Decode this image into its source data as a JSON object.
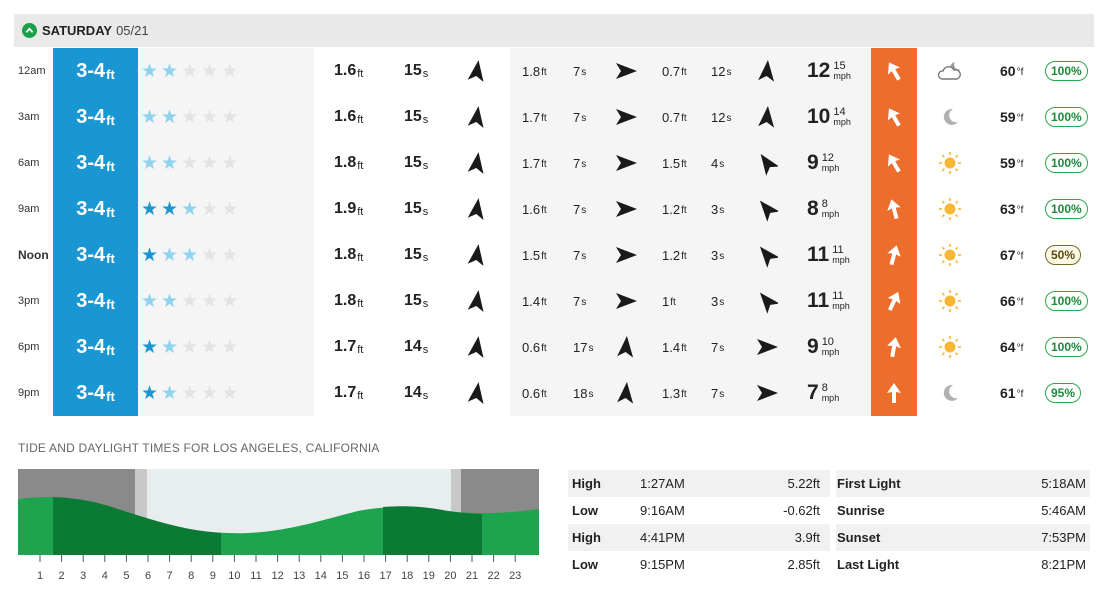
{
  "day": {
    "name": "SATURDAY",
    "date": "05/21"
  },
  "rows": [
    {
      "time": "12am",
      "bold": false,
      "wave": "3-4",
      "wave_unit": "ft",
      "stars": [
        "l",
        "l",
        "e",
        "e",
        "e"
      ],
      "s1h": "1.6",
      "s1p": "15",
      "s2h": "1.8",
      "s2p": "7",
      "s3h": "0.7",
      "s3p": "12",
      "wind": "12",
      "gust": "15",
      "wind_unit": "mph",
      "wx": "cloud-moon",
      "temp": "60",
      "temp_unit": "°f",
      "cloud": "100%",
      "cmid": false,
      "a1": 8,
      "a2": 90,
      "a3": 5,
      "aw": 10,
      "awd": -30
    },
    {
      "time": "3am",
      "bold": false,
      "wave": "3-4",
      "wave_unit": "ft",
      "stars": [
        "l",
        "l",
        "e",
        "e",
        "e"
      ],
      "s1h": "1.6",
      "s1p": "15",
      "s2h": "1.7",
      "s2p": "7",
      "s3h": "0.7",
      "s3p": "12",
      "wind": "10",
      "gust": "14",
      "wind_unit": "mph",
      "wx": "moon",
      "temp": "59",
      "temp_unit": "°f",
      "cloud": "100%",
      "cmid": false,
      "a1": 8,
      "a2": 90,
      "a3": 5,
      "aw": 10,
      "awd": -30
    },
    {
      "time": "6am",
      "bold": false,
      "wave": "3-4",
      "wave_unit": "ft",
      "stars": [
        "l",
        "l",
        "e",
        "e",
        "e"
      ],
      "s1h": "1.8",
      "s1p": "15",
      "s2h": "1.7",
      "s2p": "7",
      "s3h": "1.5",
      "s3p": "4",
      "wind": "9",
      "gust": "12",
      "wind_unit": "mph",
      "wx": "sun",
      "temp": "59",
      "temp_unit": "°f",
      "cloud": "100%",
      "cmid": false,
      "a1": 8,
      "a2": 90,
      "a3": -35,
      "aw": -35,
      "awd": -30
    },
    {
      "time": "9am",
      "bold": false,
      "wave": "3-4",
      "wave_unit": "ft",
      "stars": [
        "b",
        "b",
        "l",
        "e",
        "e"
      ],
      "s1h": "1.9",
      "s1p": "15",
      "s2h": "1.6",
      "s2p": "7",
      "s3h": "1.2",
      "s3p": "3",
      "wind": "8",
      "gust": "8",
      "wind_unit": "mph",
      "wx": "sun",
      "temp": "63",
      "temp_unit": "°f",
      "cloud": "100%",
      "cmid": false,
      "a1": 8,
      "a2": 90,
      "a3": -40,
      "aw": -40,
      "awd": -15
    },
    {
      "time": "Noon",
      "bold": true,
      "wave": "3-4",
      "wave_unit": "ft",
      "stars": [
        "b",
        "l",
        "l",
        "e",
        "e"
      ],
      "s1h": "1.8",
      "s1p": "15",
      "s2h": "1.5",
      "s2p": "7",
      "s3h": "1.2",
      "s3p": "3",
      "wind": "11",
      "gust": "11",
      "wind_unit": "mph",
      "wx": "sun",
      "temp": "67",
      "temp_unit": "°f",
      "cloud": "50%",
      "cmid": true,
      "a1": 8,
      "a2": 90,
      "a3": -40,
      "aw": -40,
      "awd": 15
    },
    {
      "time": "3pm",
      "bold": false,
      "wave": "3-4",
      "wave_unit": "ft",
      "stars": [
        "l",
        "l",
        "e",
        "e",
        "e"
      ],
      "s1h": "1.8",
      "s1p": "15",
      "s2h": "1.4",
      "s2p": "7",
      "s3h": "1",
      "s3p": "3",
      "wind": "11",
      "gust": "11",
      "wind_unit": "mph",
      "wx": "sun",
      "temp": "66",
      "temp_unit": "°f",
      "cloud": "100%",
      "cmid": false,
      "a1": 8,
      "a2": 90,
      "a3": -40,
      "aw": -40,
      "awd": 25
    },
    {
      "time": "6pm",
      "bold": false,
      "wave": "3-4",
      "wave_unit": "ft",
      "stars": [
        "b",
        "l",
        "e",
        "e",
        "e"
      ],
      "s1h": "1.7",
      "s1p": "14",
      "s2h": "0.6",
      "s2p": "17",
      "s3h": "1.4",
      "s3p": "7",
      "wind": "9",
      "gust": "10",
      "wind_unit": "mph",
      "wx": "sun",
      "temp": "64",
      "temp_unit": "°f",
      "cloud": "100%",
      "cmid": false,
      "a1": 8,
      "a2": 5,
      "a3": 90,
      "aw": 90,
      "awd": 10
    },
    {
      "time": "9pm",
      "bold": false,
      "wave": "3-4",
      "wave_unit": "ft",
      "stars": [
        "b",
        "l",
        "e",
        "e",
        "e"
      ],
      "s1h": "1.7",
      "s1p": "14",
      "s2h": "0.6",
      "s2p": "18",
      "s3h": "1.3",
      "s3p": "7",
      "wind": "7",
      "gust": "8",
      "wind_unit": "mph",
      "wx": "moon",
      "temp": "61",
      "temp_unit": "°f",
      "cloud": "95%",
      "cmid": false,
      "a1": 8,
      "a2": 5,
      "a3": 90,
      "aw": 90,
      "awd": 0
    }
  ],
  "units": {
    "ft": "ft",
    "s": "s"
  },
  "tide": {
    "title": "TIDE AND DAYLIGHT TIMES FOR LOS ANGELES, CALIFORNIA",
    "hours": [
      "1",
      "2",
      "3",
      "4",
      "5",
      "6",
      "7",
      "8",
      "9",
      "10",
      "11",
      "12",
      "13",
      "14",
      "15",
      "16",
      "17",
      "18",
      "19",
      "20",
      "21",
      "22",
      "23"
    ],
    "tides": [
      {
        "type": "High",
        "time": "1:27AM",
        "height": "5.22ft"
      },
      {
        "type": "Low",
        "time": "9:16AM",
        "height": "-0.62ft"
      },
      {
        "type": "High",
        "time": "4:41PM",
        "height": "3.9ft"
      },
      {
        "type": "Low",
        "time": "9:15PM",
        "height": "2.85ft"
      }
    ],
    "light": [
      {
        "label": "First Light",
        "time": "5:18AM"
      },
      {
        "label": "Sunrise",
        "time": "5:46AM"
      },
      {
        "label": "Sunset",
        "time": "7:53PM"
      },
      {
        "label": "Last Light",
        "time": "8:21PM"
      }
    ]
  },
  "colors": {
    "blue": "#1a97d3",
    "orange": "#ec6d2c",
    "green": "#1a9f4a",
    "dark_green": "#0b7a34",
    "star_blue": "#1a97d3",
    "star_light": "#8fd3ee",
    "star_empty": "#e3e3e3"
  }
}
